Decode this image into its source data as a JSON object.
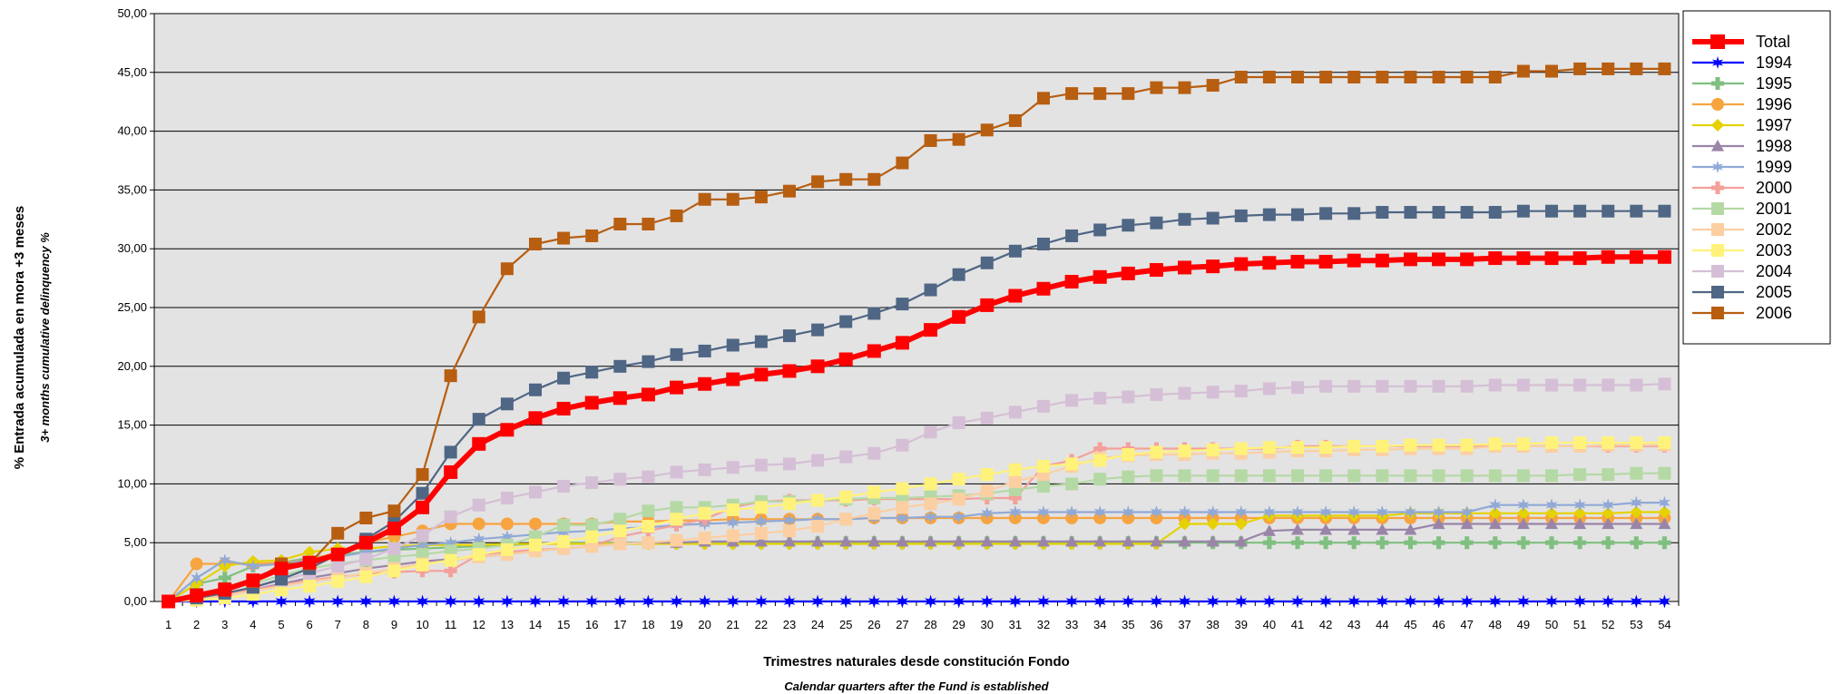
{
  "chart_data": {
    "type": "line",
    "xlabel": "Trimestres naturales desde constitución Fondo",
    "xlabel_sub": "Calendar quarters after the Fund is established",
    "ylabel": "% Entrada acumulada en mora +3 meses",
    "ylabel_sub": "3+ months cumulative delinquency %",
    "ylim": [
      0,
      50
    ],
    "yticks": [
      "0,00",
      "5,00",
      "10,00",
      "15,00",
      "20,00",
      "25,00",
      "30,00",
      "35,00",
      "40,00",
      "45,00",
      "50,00"
    ],
    "x": [
      1,
      2,
      3,
      4,
      5,
      6,
      7,
      8,
      9,
      10,
      11,
      12,
      13,
      14,
      15,
      16,
      17,
      18,
      19,
      20,
      21,
      22,
      23,
      24,
      25,
      26,
      27,
      28,
      29,
      30,
      31,
      32,
      33,
      34,
      35,
      36,
      37,
      38,
      39,
      40,
      41,
      42,
      43,
      44,
      45,
      46,
      47,
      48,
      49,
      50,
      51,
      52,
      53,
      54
    ],
    "grid": true,
    "legend_position": "right",
    "series": [
      {
        "name": "Total",
        "color": "#ff0000",
        "marker": "square",
        "values": [
          0,
          0.5,
          1,
          1.8,
          2.8,
          3.3,
          4,
          5,
          6.2,
          8,
          11,
          13.4,
          14.6,
          15.6,
          16.4,
          16.9,
          17.3,
          17.6,
          18.2,
          18.5,
          18.9,
          19.3,
          19.6,
          20,
          20.6,
          21.3,
          22,
          23.1,
          24.2,
          25.2,
          26,
          26.6,
          27.2,
          27.6,
          27.9,
          28.2,
          28.4,
          28.5,
          28.7,
          28.8,
          28.9,
          28.9,
          29,
          29,
          29.1,
          29.1,
          29.1,
          29.2,
          29.2,
          29.2,
          29.2,
          29.3,
          29.3,
          29.3
        ]
      },
      {
        "name": "1994",
        "color": "#0000ff",
        "marker": "star",
        "values": [
          0,
          0,
          0,
          0,
          0,
          0,
          0,
          0,
          0,
          0,
          0,
          0,
          0,
          0,
          0,
          0,
          0,
          0,
          0,
          0,
          0,
          0,
          0,
          0,
          0,
          0,
          0,
          0,
          0,
          0,
          0,
          0,
          0,
          0,
          0,
          0,
          0,
          0,
          0,
          0,
          0,
          0,
          0,
          0,
          0,
          0,
          0,
          0,
          0,
          0,
          0,
          0,
          0,
          0
        ]
      },
      {
        "name": "1995",
        "color": "#7fbf7f",
        "marker": "plus",
        "values": [
          0,
          1.5,
          2,
          3,
          3.3,
          3.7,
          4,
          4.2,
          4.4,
          4.5,
          4.6,
          4.7,
          4.8,
          4.9,
          5,
          5,
          5,
          5,
          5,
          5,
          5,
          5,
          5,
          5,
          5,
          5,
          5,
          5,
          5,
          5,
          5,
          5,
          5,
          5,
          5,
          5,
          5,
          5,
          5,
          5,
          5,
          5,
          5,
          5,
          5,
          5,
          5,
          5,
          5,
          5,
          5,
          5,
          5,
          5
        ]
      },
      {
        "name": "1996",
        "color": "#f7a440",
        "marker": "circle",
        "values": [
          0,
          3.2,
          3.2,
          3.2,
          3.3,
          3.5,
          4.2,
          5,
          5.5,
          6,
          6.6,
          6.6,
          6.6,
          6.6,
          6.6,
          6.6,
          6.8,
          6.8,
          6.9,
          6.9,
          7,
          7,
          7,
          7,
          7,
          7.1,
          7.1,
          7.1,
          7.1,
          7.1,
          7.1,
          7.1,
          7.1,
          7.1,
          7.1,
          7.1,
          7.1,
          7.1,
          7.1,
          7.1,
          7.1,
          7.1,
          7.1,
          7.1,
          7.1,
          7.1,
          7.1,
          7.1,
          7.1,
          7.1,
          7.1,
          7.1,
          7.1,
          7.1
        ]
      },
      {
        "name": "1997",
        "color": "#e5d200",
        "marker": "diamond",
        "values": [
          0,
          1.5,
          3,
          3.4,
          3.5,
          4.2,
          4.5,
          4.5,
          4.7,
          4.8,
          4.8,
          4.8,
          4.9,
          4.9,
          4.9,
          4.9,
          4.9,
          4.9,
          4.9,
          4.9,
          4.9,
          4.9,
          4.9,
          4.9,
          4.9,
          4.9,
          4.9,
          4.9,
          4.9,
          4.9,
          4.9,
          4.9,
          4.9,
          4.9,
          4.9,
          4.9,
          6.6,
          6.6,
          6.6,
          7.3,
          7.3,
          7.3,
          7.3,
          7.3,
          7.5,
          7.5,
          7.5,
          7.5,
          7.5,
          7.5,
          7.5,
          7.5,
          7.6,
          7.6
        ]
      },
      {
        "name": "1998",
        "color": "#9a85a8",
        "marker": "triangle",
        "values": [
          0,
          0.3,
          0.6,
          1,
          1.5,
          2,
          2.4,
          2.8,
          3.1,
          3.4,
          3.6,
          3.8,
          4,
          4.3,
          4.5,
          4.7,
          4.9,
          5,
          5,
          5.1,
          5.1,
          5.1,
          5.1,
          5.1,
          5.1,
          5.1,
          5.1,
          5.1,
          5.1,
          5.1,
          5.1,
          5.1,
          5.1,
          5.1,
          5.1,
          5.1,
          5.1,
          5.1,
          5.1,
          6,
          6.1,
          6.1,
          6.1,
          6.1,
          6.1,
          6.6,
          6.6,
          6.6,
          6.6,
          6.6,
          6.6,
          6.6,
          6.6,
          6.6
        ]
      },
      {
        "name": "1999",
        "color": "#91a9d6",
        "marker": "star",
        "values": [
          0,
          2,
          3.5,
          3,
          3.2,
          3.5,
          3.8,
          4.2,
          4.5,
          4.8,
          5,
          5.3,
          5.5,
          5.7,
          5.9,
          6,
          6.2,
          6.3,
          6.5,
          6.6,
          6.7,
          6.8,
          6.9,
          7,
          7,
          7.1,
          7.1,
          7.2,
          7.2,
          7.5,
          7.6,
          7.6,
          7.6,
          7.6,
          7.6,
          7.6,
          7.6,
          7.6,
          7.6,
          7.6,
          7.6,
          7.6,
          7.6,
          7.6,
          7.6,
          7.6,
          7.6,
          8.2,
          8.2,
          8.2,
          8.2,
          8.2,
          8.4,
          8.4
        ]
      },
      {
        "name": "2000",
        "color": "#f4a09a",
        "marker": "plus",
        "values": [
          0,
          0.3,
          0.6,
          1,
          1.4,
          1.8,
          2.1,
          2.3,
          2.5,
          2.6,
          2.6,
          4,
          4.2,
          4.4,
          4.5,
          4.7,
          5.5,
          6,
          6.5,
          7,
          8,
          8.5,
          8.6,
          8.6,
          8.6,
          8.7,
          8.7,
          8.7,
          8.7,
          8.8,
          8.8,
          11.5,
          12,
          13,
          13,
          13,
          13,
          13,
          13,
          13,
          13.2,
          13.2,
          13.2,
          13.2,
          13.2,
          13.2,
          13.2,
          13.2,
          13.2,
          13.2,
          13.2,
          13.2,
          13.2,
          13.2
        ]
      },
      {
        "name": "2001",
        "color": "#b5d9a5",
        "marker": "square",
        "values": [
          0,
          0.5,
          1,
          1.5,
          2.2,
          2.8,
          3.2,
          3.5,
          3.8,
          4,
          4.3,
          4.5,
          4.8,
          5.5,
          6.5,
          6.5,
          7,
          7.7,
          8,
          8,
          8.2,
          8.5,
          8.5,
          8.6,
          8.7,
          8.8,
          8.8,
          8.9,
          9,
          9.2,
          9.5,
          9.8,
          10,
          10.4,
          10.6,
          10.7,
          10.7,
          10.7,
          10.7,
          10.7,
          10.7,
          10.7,
          10.7,
          10.7,
          10.7,
          10.7,
          10.7,
          10.7,
          10.7,
          10.7,
          10.8,
          10.8,
          10.9,
          10.9
        ]
      },
      {
        "name": "2002",
        "color": "#fbcfa2",
        "marker": "square",
        "values": [
          0,
          0.2,
          0.5,
          0.9,
          1.3,
          1.7,
          2,
          2.4,
          2.8,
          3.2,
          3.5,
          3.8,
          4,
          4.3,
          4.5,
          4.7,
          4.9,
          5,
          5.2,
          5.4,
          5.6,
          5.8,
          6,
          6.4,
          7,
          7.5,
          8,
          8.3,
          8.7,
          9.4,
          10.2,
          10.8,
          11.5,
          12.2,
          12.4,
          12.5,
          12.5,
          12.6,
          12.6,
          12.7,
          12.8,
          12.8,
          12.9,
          12.9,
          13,
          13,
          13,
          13.2,
          13.2,
          13.2,
          13.2,
          13.3,
          13.3,
          13.3
        ]
      },
      {
        "name": "2003",
        "color": "#fff27a",
        "marker": "square",
        "values": [
          0,
          0.1,
          0.3,
          0.6,
          1,
          1.3,
          1.7,
          2.1,
          2.6,
          3.1,
          3.5,
          4,
          4.4,
          4.8,
          5.1,
          5.5,
          6,
          6.4,
          7,
          7.5,
          7.8,
          8,
          8.3,
          8.6,
          8.9,
          9.3,
          9.6,
          10,
          10.4,
          10.8,
          11.2,
          11.5,
          11.7,
          12,
          12.5,
          12.7,
          12.8,
          12.9,
          13,
          13.1,
          13.1,
          13.1,
          13.2,
          13.2,
          13.3,
          13.3,
          13.3,
          13.4,
          13.4,
          13.5,
          13.5,
          13.5,
          13.5,
          13.5
        ]
      },
      {
        "name": "2004",
        "color": "#d5bfd6",
        "marker": "square",
        "values": [
          0,
          0.3,
          0.7,
          1.2,
          1.8,
          2.4,
          3,
          3.6,
          4.5,
          5.6,
          7.2,
          8.2,
          8.8,
          9.3,
          9.8,
          10.1,
          10.4,
          10.6,
          11,
          11.2,
          11.4,
          11.6,
          11.7,
          12,
          12.3,
          12.6,
          13.3,
          14.4,
          15.2,
          15.6,
          16.1,
          16.6,
          17.1,
          17.3,
          17.4,
          17.6,
          17.7,
          17.8,
          17.9,
          18.1,
          18.2,
          18.3,
          18.3,
          18.3,
          18.3,
          18.3,
          18.3,
          18.4,
          18.4,
          18.4,
          18.4,
          18.4,
          18.4,
          18.5
        ]
      },
      {
        "name": "2005",
        "color": "#4f6685",
        "marker": "square",
        "values": [
          0,
          0.3,
          0.7,
          1.2,
          1.9,
          2.8,
          4,
          5.3,
          6.8,
          9.2,
          12.7,
          15.5,
          16.8,
          18,
          19,
          19.5,
          20,
          20.4,
          21,
          21.3,
          21.8,
          22.1,
          22.6,
          23.1,
          23.8,
          24.5,
          25.3,
          26.5,
          27.8,
          28.8,
          29.8,
          30.4,
          31.1,
          31.6,
          32,
          32.2,
          32.5,
          32.6,
          32.8,
          32.9,
          32.9,
          33,
          33,
          33.1,
          33.1,
          33.1,
          33.1,
          33.1,
          33.2,
          33.2,
          33.2,
          33.2,
          33.2,
          33.2
        ]
      },
      {
        "name": "2006",
        "color": "#b75e11",
        "marker": "square",
        "values": [
          0,
          0.6,
          1.1,
          1.7,
          3.2,
          3.2,
          5.8,
          7.1,
          7.7,
          10.8,
          19.2,
          24.2,
          28.3,
          30.4,
          30.9,
          31.1,
          32.1,
          32.1,
          32.8,
          34.2,
          34.2,
          34.4,
          34.9,
          35.7,
          35.9,
          35.9,
          37.3,
          39.2,
          39.3,
          40.1,
          40.9,
          42.8,
          43.2,
          43.2,
          43.2,
          43.7,
          43.7,
          43.9,
          44.6,
          44.6,
          44.6,
          44.6,
          44.6,
          44.6,
          44.6,
          44.6,
          44.6,
          44.6,
          45.1,
          45.1,
          45.3,
          45.3,
          45.3,
          45.3
        ]
      }
    ]
  }
}
